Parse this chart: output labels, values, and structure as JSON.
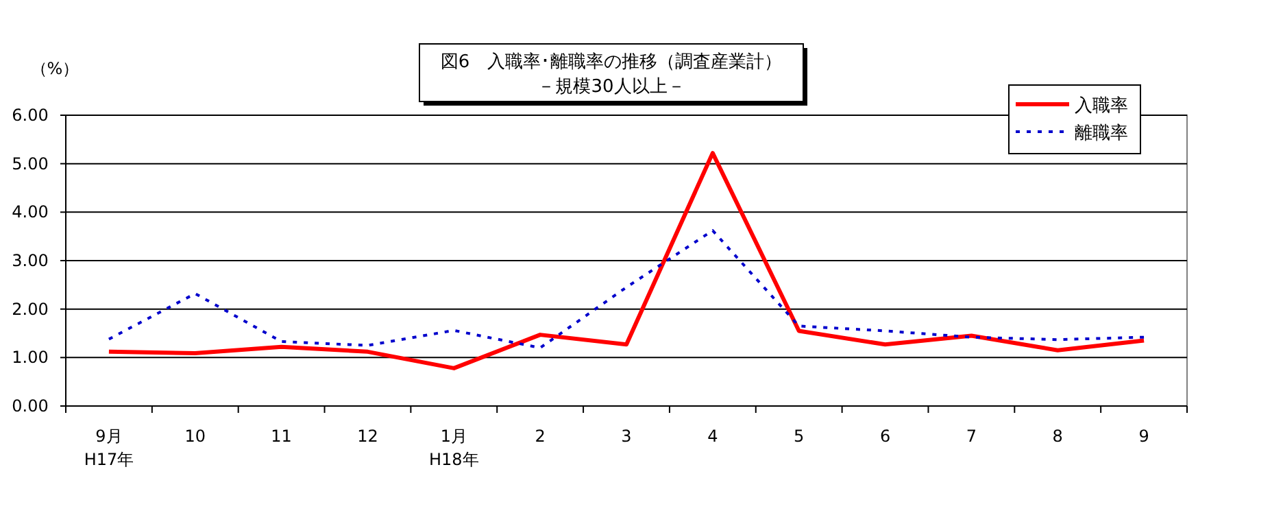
{
  "chart_data": {
    "type": "line",
    "title": "図6　入職率･離職率の推移（調査産業計）",
    "subtitle": "－規模30人以上－",
    "ylabel": "（%）",
    "categories": [
      "9月\nH17年",
      "10",
      "11",
      "12",
      "1月\nH18年",
      "2",
      "3",
      "4",
      "5",
      "6",
      "7",
      "8",
      "9"
    ],
    "series": [
      {
        "name": "入職率",
        "color": "#ff0000",
        "line_style": "solid",
        "values": [
          1.12,
          1.09,
          1.22,
          1.12,
          0.78,
          1.47,
          1.27,
          5.22,
          1.55,
          1.27,
          1.45,
          1.15,
          1.35
        ]
      },
      {
        "name": "離職率",
        "color": "#0000cc",
        "line_style": "dotted",
        "values": [
          1.38,
          2.32,
          1.33,
          1.25,
          1.56,
          1.2,
          2.45,
          3.62,
          1.65,
          1.55,
          1.42,
          1.37,
          1.42
        ]
      }
    ],
    "ylim": [
      0,
      6
    ],
    "yticks": [
      {
        "value": 0,
        "label": "0.00"
      },
      {
        "value": 1,
        "label": "1.00"
      },
      {
        "value": 2,
        "label": "2.00"
      },
      {
        "value": 3,
        "label": "3.00"
      },
      {
        "value": 4,
        "label": "4.00"
      },
      {
        "value": 5,
        "label": "5.00"
      },
      {
        "value": 6,
        "label": "6.00"
      }
    ],
    "grid": "y",
    "legend": "top right",
    "marker": "none"
  }
}
